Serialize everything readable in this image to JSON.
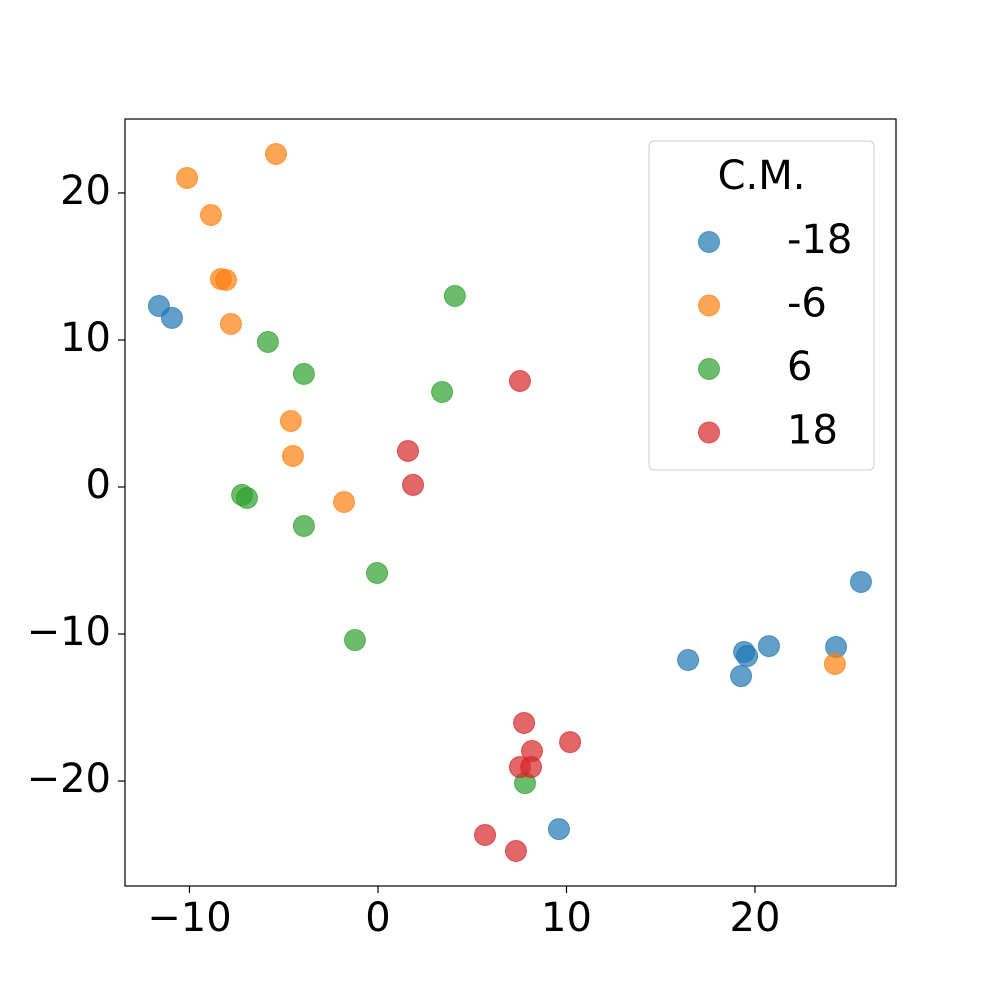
{
  "chart_data": {
    "type": "scatter",
    "legend_title": "C.M.",
    "legend_position": "upper right",
    "xlim": [
      -13.42,
      27.48
    ],
    "ylim": [
      -27.14,
      25.03
    ],
    "xticks": [
      {
        "value": -10,
        "label": "−10"
      },
      0,
      10,
      20
    ],
    "yticks": [
      {
        "value": -20,
        "label": "−20"
      },
      {
        "value": -10,
        "label": "−10"
      },
      0,
      10,
      20
    ],
    "series": [
      {
        "name": "-18",
        "color": "#1f77b4",
        "x": [
          -11.62,
          -10.93,
          25.62,
          24.3,
          20.74,
          19.42,
          19.58,
          16.45,
          19.26,
          9.6
        ],
        "values": [
          12.31,
          11.5,
          -6.46,
          -10.88,
          -10.82,
          -11.22,
          -11.5,
          -11.77,
          -12.86,
          -23.27
        ]
      },
      {
        "name": "-6",
        "color": "#ff7f0e",
        "x": [
          -5.41,
          -10.13,
          -8.86,
          -8.33,
          -8.06,
          -7.8,
          -4.62,
          -4.51,
          -1.8,
          24.24
        ],
        "values": [
          22.65,
          21.02,
          18.5,
          14.15,
          14.08,
          11.09,
          4.49,
          2.11,
          -1.02,
          -12.04
        ]
      },
      {
        "name": "6",
        "color": "#2ca02c",
        "x": [
          4.08,
          -5.84,
          -3.93,
          3.4,
          -7.21,
          -6.95,
          -3.93,
          -0.05,
          -1.22,
          7.8
        ],
        "values": [
          12.99,
          9.86,
          7.69,
          6.46,
          -0.54,
          -0.75,
          -2.65,
          -5.85,
          -10.41,
          -20.14
        ]
      },
      {
        "name": "18",
        "color": "#d62728",
        "x": [
          7.53,
          1.59,
          1.86,
          7.75,
          8.17,
          10.19,
          7.53,
          8.12,
          5.68,
          7.32
        ],
        "values": [
          7.21,
          2.45,
          0.14,
          -16.05,
          -17.96,
          -17.35,
          -19.05,
          -19.05,
          -23.67,
          -24.76
        ]
      }
    ]
  }
}
